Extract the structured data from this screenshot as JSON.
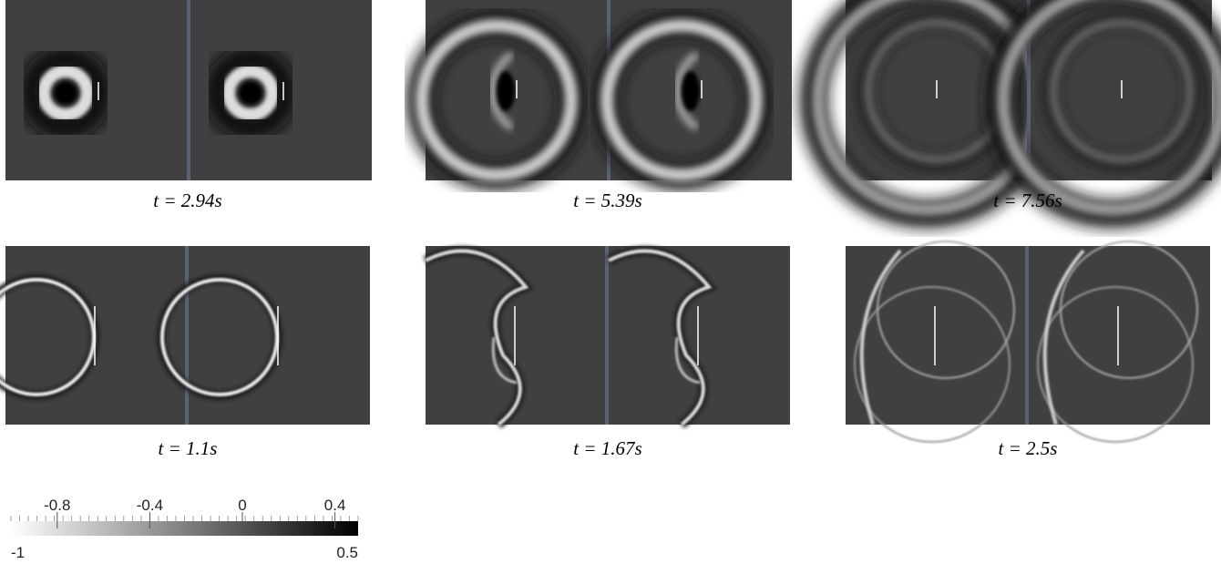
{
  "panels": [
    {
      "caption": "t = 2.94s"
    },
    {
      "caption": "t = 5.39s"
    },
    {
      "caption": "t = 7.56s"
    },
    {
      "caption": "t = 1.1s"
    },
    {
      "caption": "t = 1.67s"
    },
    {
      "caption": "t = 2.5s"
    }
  ],
  "colorbar": {
    "range": [
      -1,
      0.5
    ],
    "ticks": [
      -0.8,
      -0.4,
      0,
      0.4
    ]
  }
}
